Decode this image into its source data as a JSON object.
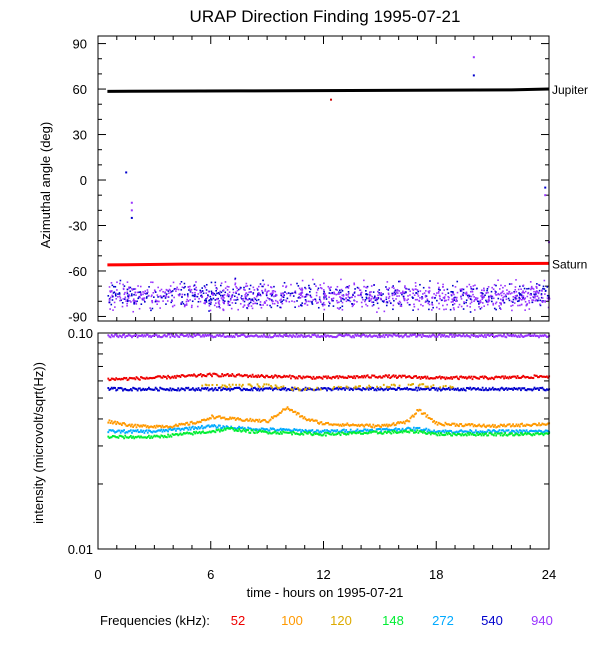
{
  "title": "URAP Direction Finding  1995-07-21",
  "chart_data": [
    {
      "type": "scatter",
      "title": "URAP Direction Finding  1995-07-21",
      "ylabel": "Azimuthal angle (deg)",
      "xlim": [
        0,
        24
      ],
      "ylim": [
        -93,
        95
      ],
      "yticks": [
        90,
        60,
        30,
        0,
        -30,
        -60,
        -90
      ],
      "reference_lines": [
        {
          "name": "Jupiter",
          "color": "#000000",
          "x": [
            0.5,
            7.5,
            22.0,
            24.0
          ],
          "y": [
            58.5,
            58.8,
            59.5,
            60.0
          ]
        },
        {
          "name": "Saturn",
          "color": "#ff0000",
          "x": [
            0.5,
            4.5,
            24.0
          ],
          "y": [
            -56.0,
            -55.5,
            -55.0
          ]
        }
      ],
      "scatter_band": {
        "colors": [
          "#9933ff",
          "#0000cc"
        ],
        "x_range": [
          0.5,
          24.0
        ],
        "y_center": -76,
        "y_spread": 9
      },
      "outlier_points": [
        {
          "x": 1.5,
          "y": 5,
          "color": "#0000cc"
        },
        {
          "x": 1.8,
          "y": -15,
          "color": "#9933ff"
        },
        {
          "x": 1.8,
          "y": -20,
          "color": "#9933ff"
        },
        {
          "x": 1.8,
          "y": -25,
          "color": "#0000cc"
        },
        {
          "x": 12.4,
          "y": 53,
          "color": "#cc0000"
        },
        {
          "x": 20.0,
          "y": 81,
          "color": "#9933ff"
        },
        {
          "x": 20.0,
          "y": 69,
          "color": "#0000cc"
        },
        {
          "x": 23.8,
          "y": -5,
          "color": "#0000cc"
        },
        {
          "x": 23.8,
          "y": -10,
          "color": "#9933ff"
        },
        {
          "x": 24.0,
          "y": -41,
          "color": "#9933ff"
        }
      ]
    },
    {
      "type": "line",
      "xlabel": "time - hours on 1995-07-21",
      "ylabel": "intensity (microvolt/sqrt(Hz))",
      "xlim": [
        0,
        24
      ],
      "ylim": [
        0.01,
        0.1
      ],
      "yscale": "log",
      "xticks": [
        0,
        6,
        12,
        18,
        24
      ],
      "ytick_labels": [
        "0.10",
        "0.01"
      ],
      "yminor": [
        0.02,
        0.03,
        0.04,
        0.05,
        0.06,
        0.07,
        0.08,
        0.09
      ],
      "series": [
        {
          "name": "940",
          "color": "#9933ff",
          "x": [
            0.5,
            6,
            12,
            18,
            24
          ],
          "y": [
            0.097,
            0.097,
            0.097,
            0.097,
            0.097
          ]
        },
        {
          "name": "52",
          "color": "#ee0000",
          "x": [
            0.5,
            3,
            6,
            9,
            12,
            15,
            18,
            21,
            24
          ],
          "y": [
            0.061,
            0.062,
            0.064,
            0.063,
            0.062,
            0.063,
            0.062,
            0.062,
            0.063
          ]
        },
        {
          "name": "540",
          "color": "#0000cc",
          "x": [
            0.5,
            6,
            12,
            18,
            24
          ],
          "y": [
            0.055,
            0.055,
            0.055,
            0.055,
            0.055
          ]
        },
        {
          "name": "120",
          "color": "#ddaa00",
          "x": [
            5.5,
            9,
            10.5,
            14,
            17,
            17.5,
            19
          ],
          "y": [
            0.057,
            0.057,
            0.055,
            0.056,
            0.058,
            0.057,
            0.056
          ]
        },
        {
          "name": "100",
          "color": "#ff9900",
          "x": [
            0.5,
            2,
            4,
            5.5,
            6,
            7,
            9,
            10,
            11,
            12,
            15,
            16.5,
            17,
            18,
            21,
            24
          ],
          "y": [
            0.039,
            0.037,
            0.037,
            0.039,
            0.041,
            0.04,
            0.039,
            0.045,
            0.04,
            0.038,
            0.037,
            0.039,
            0.044,
            0.038,
            0.037,
            0.038
          ]
        },
        {
          "name": "272",
          "color": "#00aaff",
          "x": [
            0.5,
            3,
            6,
            8,
            12,
            17,
            18,
            24
          ],
          "y": [
            0.035,
            0.035,
            0.037,
            0.036,
            0.035,
            0.036,
            0.035,
            0.035
          ]
        },
        {
          "name": "148",
          "color": "#00ee33",
          "x": [
            0.5,
            3,
            6,
            7,
            8,
            12,
            17,
            18,
            24
          ],
          "y": [
            0.033,
            0.033,
            0.035,
            0.036,
            0.035,
            0.034,
            0.035,
            0.034,
            0.034
          ]
        }
      ]
    }
  ],
  "legend": {
    "label": "Frequencies (kHz):",
    "items": [
      {
        "label": "52",
        "color": "#ee0000"
      },
      {
        "label": "100",
        "color": "#ff9900"
      },
      {
        "label": "120",
        "color": "#ddaa00"
      },
      {
        "label": "148",
        "color": "#00ee33"
      },
      {
        "label": "272",
        "color": "#00aaff"
      },
      {
        "label": "540",
        "color": "#0000cc"
      },
      {
        "label": "940",
        "color": "#9933ff"
      }
    ]
  }
}
